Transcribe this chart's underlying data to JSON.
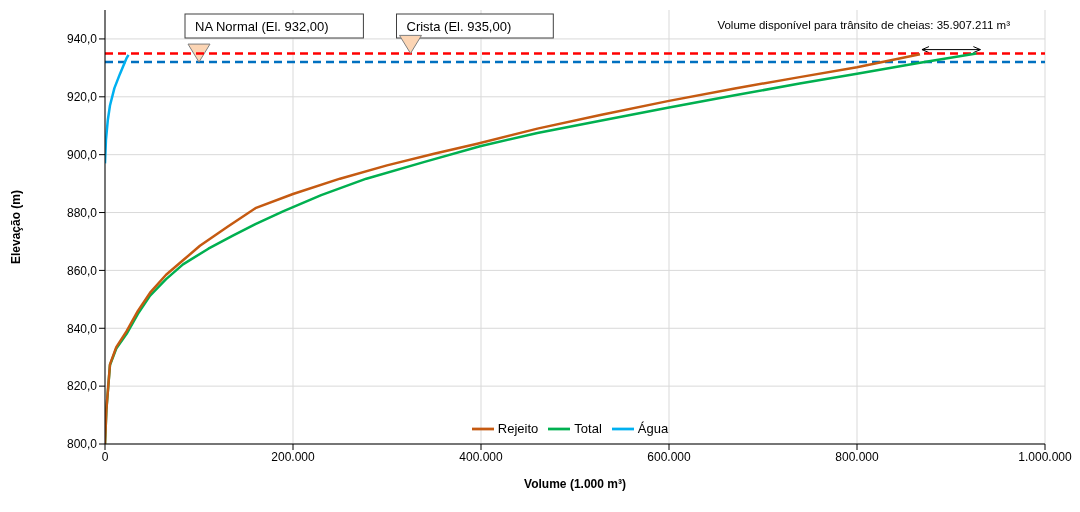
{
  "chart_data": {
    "type": "line",
    "xlabel": "Volume (1.000 m³)",
    "ylabel": "Elevação (m)",
    "xlim": [
      0,
      1000000
    ],
    "ylim": [
      800,
      950
    ],
    "xticks": [
      {
        "value": 0,
        "label": "0"
      },
      {
        "value": 200000,
        "label": "200.000"
      },
      {
        "value": 400000,
        "label": "400.000"
      },
      {
        "value": 600000,
        "label": "600.000"
      },
      {
        "value": 800000,
        "label": "800.000"
      },
      {
        "value": 1000000,
        "label": "1.000.000"
      }
    ],
    "yticks": [
      {
        "value": 800,
        "label": "800,0"
      },
      {
        "value": 820,
        "label": "820,0"
      },
      {
        "value": 840,
        "label": "840,0"
      },
      {
        "value": 860,
        "label": "860,0"
      },
      {
        "value": 880,
        "label": "880,0"
      },
      {
        "value": 900,
        "label": "900,0"
      },
      {
        "value": 920,
        "label": "920,0"
      },
      {
        "value": 940,
        "label": "940,0"
      }
    ],
    "grid": true,
    "legend": "bottom",
    "marker": "none",
    "line_style": "solid",
    "series": [
      {
        "name": "Total",
        "color": "#00b050",
        "x": [
          0,
          1500,
          5300,
          12000,
          23000,
          35000,
          48000,
          65000,
          83000,
          110000,
          136000,
          160000,
          190000,
          230000,
          278000,
          340000,
          399000,
          460000,
          527000,
          600000,
          670000,
          739000,
          800000,
          867000,
          927000
        ],
        "values": [
          800,
          812,
          827.3,
          833,
          838.1,
          845,
          851.3,
          857,
          862.1,
          867.5,
          872,
          876,
          880.5,
          886,
          891.7,
          897.5,
          902.9,
          907.5,
          911.7,
          916.3,
          920.5,
          924.6,
          928,
          931.8,
          935
        ]
      },
      {
        "name": "Água",
        "color": "#00b0f0",
        "x": [
          0,
          1000,
          3000,
          5300,
          10000,
          16000,
          23000,
          25000
        ],
        "values": [
          897,
          905,
          912,
          917,
          923,
          928,
          933.4,
          934.5
        ]
      },
      {
        "name": "Rejeito",
        "color": "#c55a11",
        "x": [
          0,
          1500,
          5300,
          12000,
          23000,
          35000,
          48000,
          65000,
          83000,
          101000,
          130000,
          160000,
          200000,
          250000,
          300000,
          350000,
          396000,
          460000,
          527000,
          600000,
          670000,
          739000,
          800000,
          867000
        ],
        "values": [
          800,
          812,
          827.5,
          833.5,
          839,
          846,
          852.3,
          858.5,
          863.5,
          868.5,
          875,
          881.5,
          886.4,
          891.7,
          896.3,
          900.3,
          903.8,
          909,
          913.7,
          918.6,
          922.9,
          926.8,
          930.2,
          934.7
        ]
      }
    ],
    "ref_lines": [
      {
        "axis": "y",
        "value": 932,
        "label": "NA Normal (El. 932,00)",
        "color": "#0070c0",
        "line_style": "dashed"
      },
      {
        "axis": "y",
        "value": 935,
        "label": "Crista (El. 935,00)",
        "color": "#ff0000",
        "line_style": "dashed"
      }
    ],
    "annotations": [
      "Volume disponível para trânsito de cheias: 35.907.211 m³"
    ]
  }
}
